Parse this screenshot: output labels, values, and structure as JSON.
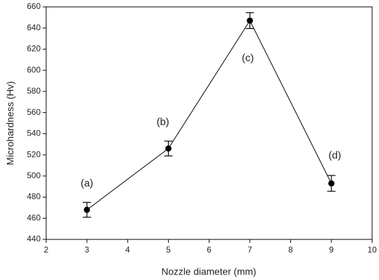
{
  "chart_data": {
    "type": "line",
    "x_label": "Nozzle diameter (mm)",
    "y_label": "Microhardness    (Hv)",
    "x": [
      3,
      5,
      7,
      9
    ],
    "series": [
      {
        "color": "#000000",
        "values": [
          468,
          526,
          647,
          493
        ],
        "errors": [
          7,
          7,
          7.5,
          7.5
        ]
      }
    ],
    "annotations": [
      "(a)",
      "(b)",
      "(c)",
      "(d)"
    ],
    "xlim": [
      2,
      10
    ],
    "xticks": [
      2,
      3,
      4,
      5,
      6,
      7,
      8,
      9,
      10
    ],
    "ylim": [
      440,
      660
    ],
    "yticks": [
      440,
      460,
      480,
      500,
      520,
      540,
      560,
      580,
      600,
      620,
      640,
      660
    ],
    "grid": false
  }
}
